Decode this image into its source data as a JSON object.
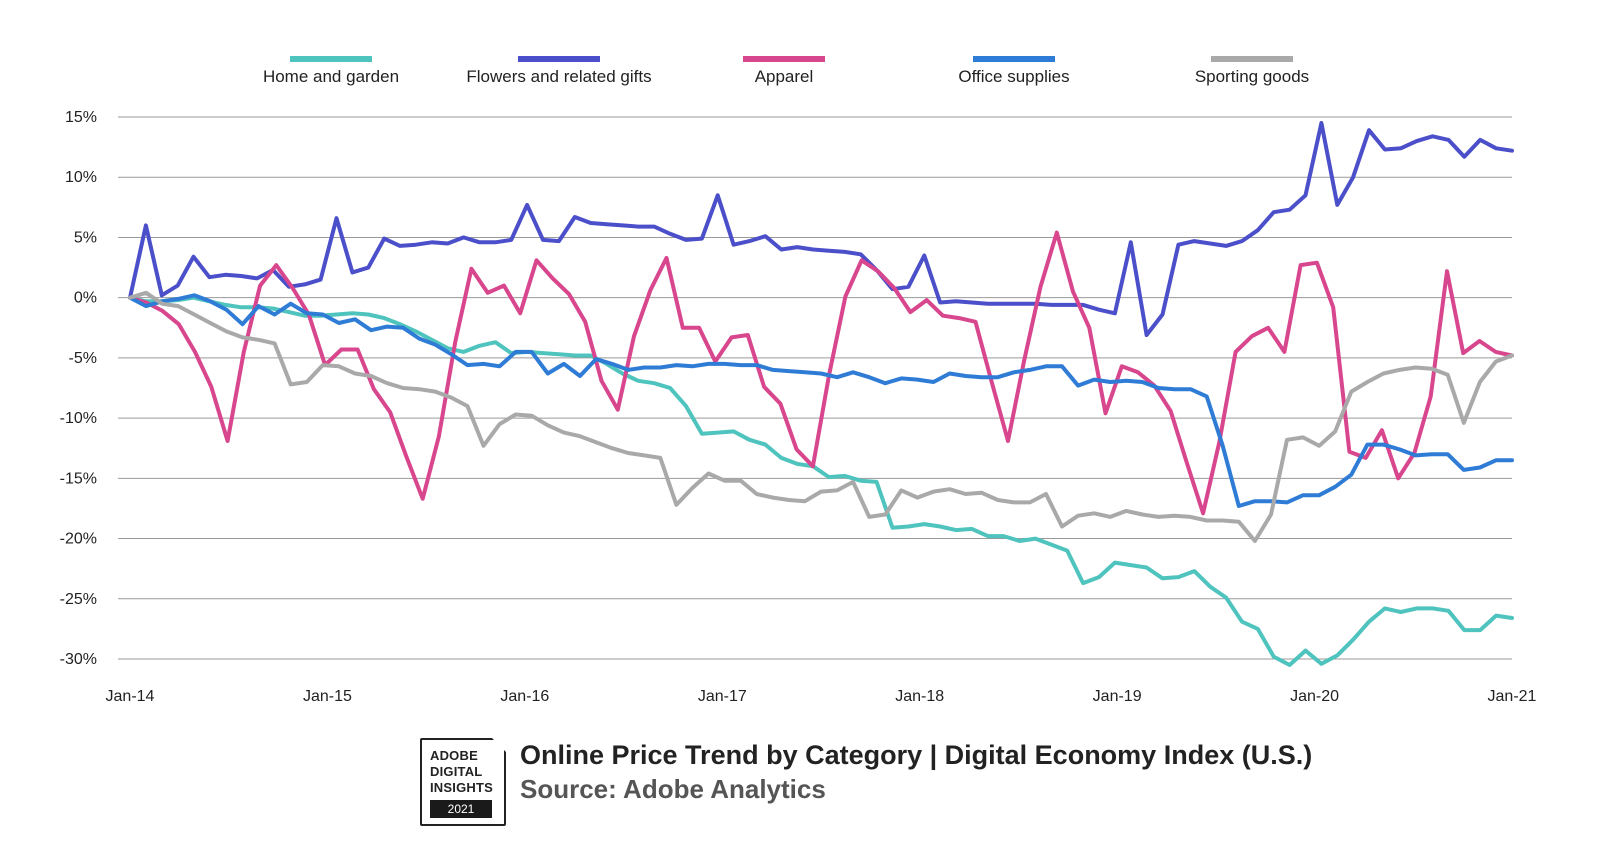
{
  "chart_data": {
    "type": "line",
    "title": "Online Price Trend by Category | Digital Economy Index (U.S.)",
    "source": "Source: Adobe Analytics",
    "ylabel": "",
    "xlabel": "",
    "ylim": [
      -30,
      15
    ],
    "xlim": [
      0,
      84
    ],
    "yticks": [
      15,
      10,
      5,
      0,
      -5,
      -10,
      -15,
      -20,
      -25,
      -30
    ],
    "ytick_labels": [
      "15%",
      "10%",
      "5%",
      "0%",
      "-5%",
      "-10%",
      "-15%",
      "-20%",
      "-25%",
      "-30%"
    ],
    "xticks": [
      0,
      12,
      24,
      36,
      48,
      60,
      72,
      84
    ],
    "xtick_labels": [
      "Jan-14",
      "Jan-15",
      "Jan-16",
      "Jan-17",
      "Jan-18",
      "Jan-19",
      "Jan-20",
      "Jan-21"
    ],
    "grid": "horizontal",
    "legend_position": "top",
    "series": [
      {
        "name": "Home and garden",
        "color": "#4fc3bd",
        "values": [
          0.0,
          -0.3,
          -0.3,
          -0.2,
          0,
          -0.3,
          -0.6,
          -0.8,
          -0.8,
          -0.9,
          -1.2,
          -1.5,
          -1.5,
          -1.4,
          -1.3,
          -1.4,
          -1.7,
          -2.2,
          -2.8,
          -3.5,
          -4.2,
          -4.5,
          -4.0,
          -3.7,
          -4.6,
          -4.5,
          -4.6,
          -4.7,
          -4.8,
          -4.8,
          -5.5,
          -6.3,
          -6.9,
          -7.1,
          -7.5,
          -9.0,
          -11.3,
          -11.2,
          -11.1,
          -11.8,
          -12.2,
          -13.3,
          -13.8,
          -14.0,
          -14.9,
          -14.8,
          -15.2,
          -15.3,
          -19.1,
          -19.0,
          -18.8,
          -19.0,
          -19.3,
          -19.2,
          -19.8,
          -19.8,
          -20.2,
          -20.0,
          -20.5,
          -21.0,
          -23.7,
          -23.2,
          -22.0,
          -22.2,
          -22.4,
          -23.3,
          -23.2,
          -22.7,
          -24.0,
          -24.9,
          -26.9,
          -27.5,
          -29.8,
          -30.5,
          -29.3,
          -30.4,
          -29.7,
          -28.4,
          -26.9,
          -25.8,
          -26.1,
          -25.8,
          -25.8,
          -26.0,
          -27.6,
          -27.6,
          -26.4,
          -26.6
        ]
      },
      {
        "name": "Flowers and related gifts",
        "color": "#4b4fc9",
        "values": [
          0.0,
          6.0,
          0.2,
          1.0,
          3.4,
          1.7,
          1.9,
          1.8,
          1.6,
          2.3,
          0.9,
          1.1,
          1.5,
          6.6,
          2.1,
          2.5,
          4.9,
          4.3,
          4.4,
          4.6,
          4.5,
          5.0,
          4.6,
          4.6,
          4.8,
          7.7,
          4.8,
          4.7,
          6.7,
          6.2,
          6.1,
          6.0,
          5.9,
          5.9,
          5.3,
          4.8,
          4.9,
          8.5,
          4.4,
          4.7,
          5.1,
          4.0,
          4.2,
          4.0,
          3.9,
          3.8,
          3.6,
          2.3,
          0.7,
          0.9,
          3.5,
          -0.4,
          -0.3,
          -0.4,
          -0.5,
          -0.5,
          -0.5,
          -0.5,
          -0.6,
          -0.6,
          -0.6,
          -1.0,
          -1.3,
          4.6,
          -3.1,
          -1.4,
          4.4,
          4.7,
          4.5,
          4.3,
          4.7,
          5.6,
          7.1,
          7.3,
          8.5,
          14.5,
          7.7,
          10.0,
          13.9,
          12.3,
          12.4,
          13.0,
          13.4,
          13.1,
          11.7,
          13.1,
          12.4,
          12.2
        ]
      },
      {
        "name": "Apparel",
        "color": "#d8468e",
        "values": [
          0.0,
          -0.4,
          -1.1,
          -2.2,
          -4.5,
          -7.4,
          -11.9,
          -4.5,
          1.0,
          2.7,
          0.8,
          -1.4,
          -5.6,
          -4.3,
          -4.3,
          -7.6,
          -9.5,
          -13.2,
          -16.7,
          -11.5,
          -3.7,
          2.4,
          0.4,
          1.0,
          -1.3,
          3.1,
          1.6,
          0.3,
          -2.0,
          -6.9,
          -9.3,
          -3.2,
          0.6,
          3.3,
          -2.5,
          -2.5,
          -5.3,
          -3.3,
          -3.1,
          -7.4,
          -8.8,
          -12.6,
          -14.0,
          -6.4,
          0.1,
          3.1,
          2.2,
          0.8,
          -1.2,
          -0.2,
          -1.5,
          -1.7,
          -2.0,
          -7.0,
          -11.9,
          -5.2,
          0.9,
          5.4,
          0.5,
          -2.5,
          -9.6,
          -5.7,
          -6.2,
          -7.3,
          -9.4,
          -13.7,
          -17.9,
          -12.0,
          -4.5,
          -3.2,
          -2.5,
          -4.5,
          2.7,
          2.9,
          -0.8,
          -12.8,
          -13.3,
          -11.0,
          -15.0,
          -12.9,
          -8.2,
          2.2,
          -4.6,
          -3.6,
          -4.5,
          -4.8
        ]
      },
      {
        "name": "Office supplies",
        "color": "#2f7cd6",
        "values": [
          0.0,
          -0.7,
          -0.3,
          -0.1,
          0.2,
          -0.3,
          -1.0,
          -2.2,
          -0.7,
          -1.4,
          -0.5,
          -1.3,
          -1.4,
          -2.1,
          -1.8,
          -2.7,
          -2.4,
          -2.5,
          -3.4,
          -3.9,
          -4.7,
          -5.6,
          -5.5,
          -5.7,
          -4.5,
          -4.5,
          -6.3,
          -5.5,
          -6.5,
          -5.1,
          -5.5,
          -6.0,
          -5.8,
          -5.8,
          -5.6,
          -5.7,
          -5.5,
          -5.5,
          -5.6,
          -5.6,
          -6.0,
          -6.1,
          -6.2,
          -6.3,
          -6.6,
          -6.2,
          -6.6,
          -7.1,
          -6.7,
          -6.8,
          -7.0,
          -6.3,
          -6.5,
          -6.6,
          -6.6,
          -6.2,
          -6.0,
          -5.7,
          -5.7,
          -7.3,
          -6.8,
          -7.0,
          -6.9,
          -7.0,
          -7.5,
          -7.6,
          -7.6,
          -8.2,
          -12.3,
          -17.3,
          -16.9,
          -16.9,
          -17.0,
          -16.4,
          -16.4,
          -15.7,
          -14.7,
          -12.2,
          -12.2,
          -12.6,
          -13.1,
          -13.0,
          -13.0,
          -14.3,
          -14.1,
          -13.5,
          -13.5
        ]
      },
      {
        "name": "Sporting goods",
        "color": "#a9a9a9",
        "values": [
          0.0,
          0.4,
          -0.5,
          -0.7,
          -1.4,
          -2.1,
          -2.8,
          -3.3,
          -3.5,
          -3.8,
          -7.2,
          -7.0,
          -5.6,
          -5.7,
          -6.3,
          -6.5,
          -7.1,
          -7.5,
          -7.6,
          -7.8,
          -8.3,
          -9.0,
          -12.3,
          -10.5,
          -9.7,
          -9.8,
          -10.6,
          -11.2,
          -11.5,
          -12.0,
          -12.5,
          -12.9,
          -13.1,
          -13.3,
          -17.2,
          -15.8,
          -14.6,
          -15.2,
          -15.2,
          -16.3,
          -16.6,
          -16.8,
          -16.9,
          -16.1,
          -16.0,
          -15.3,
          -18.2,
          -18.0,
          -16.0,
          -16.6,
          -16.1,
          -15.9,
          -16.3,
          -16.2,
          -16.8,
          -17.0,
          -17.0,
          -16.3,
          -19.0,
          -18.1,
          -17.9,
          -18.2,
          -17.7,
          -18.0,
          -18.2,
          -18.1,
          -18.2,
          -18.5,
          -18.5,
          -18.6,
          -20.2,
          -18.0,
          -11.8,
          -11.6,
          -12.3,
          -11.1,
          -7.8,
          -7.0,
          -6.3,
          -6.0,
          -5.8,
          -5.9,
          -6.4,
          -10.4,
          -7.0,
          -5.3,
          -4.8
        ]
      }
    ]
  },
  "badge": {
    "line1": "ADOBE",
    "line2": "DIGITAL",
    "line3": "INSIGHTS",
    "year": "2021"
  }
}
